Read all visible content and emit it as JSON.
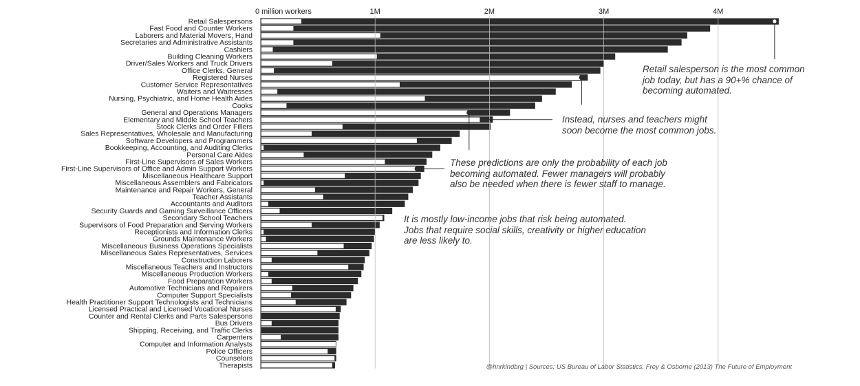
{
  "chart_data": {
    "type": "bar",
    "x_axis": {
      "ticks": [
        {
          "value": 0,
          "label": "0 million workers"
        },
        {
          "value": 1,
          "label": "1M"
        },
        {
          "value": 2,
          "label": "2M"
        },
        {
          "value": 3,
          "label": "3M"
        },
        {
          "value": 4,
          "label": "4M"
        }
      ],
      "range": [
        0,
        4.6
      ],
      "grid": true
    },
    "series": [
      {
        "key": "total",
        "description": "total employment (dark bar)",
        "color": "#2b2b2b"
      },
      {
        "key": "safe",
        "description": "portion not at risk of automation (white bar)",
        "color": "#ffffff"
      }
    ],
    "rows": [
      {
        "name": "Retail Salespersons",
        "total": 4.53,
        "safe": 0.36
      },
      {
        "name": "Fast Food and Counter Workers",
        "total": 3.93,
        "safe": 0.29
      },
      {
        "name": "Laborers and Material Movers, Hand",
        "total": 3.73,
        "safe": 1.05
      },
      {
        "name": "Secretaries and Administrative Assistants",
        "total": 3.68,
        "safe": 0.29
      },
      {
        "name": "Cashiers",
        "total": 3.56,
        "safe": 0.11
      },
      {
        "name": "Building Cleaning Workers",
        "total": 3.1,
        "safe": 1.02
      },
      {
        "name": "Driver/Sales Workers and Truck Drivers",
        "total": 3.0,
        "safe": 0.63
      },
      {
        "name": "Office Clerks, General",
        "total": 2.97,
        "safe": 0.12
      },
      {
        "name": "Registered Nurses",
        "total": 2.86,
        "safe": 2.8
      },
      {
        "name": "Customer Service Representatives",
        "total": 2.72,
        "safe": 1.22
      },
      {
        "name": "Waiters and Waitresses",
        "total": 2.58,
        "safe": 0.15
      },
      {
        "name": "Nursing, Psychiatric, and Home Health Aides",
        "total": 2.46,
        "safe": 1.44
      },
      {
        "name": "Cooks",
        "total": 2.4,
        "safe": 0.23
      },
      {
        "name": "General and Operations Managers",
        "total": 2.18,
        "safe": 1.84
      },
      {
        "name": "Elementary and Middle School Teachers",
        "total": 2.03,
        "safe": 1.92
      },
      {
        "name": "Stock Clerks and Order Fillers",
        "total": 2.01,
        "safe": 0.72
      },
      {
        "name": "Sales Representatives, Wholesale and Manufacturing",
        "total": 1.74,
        "safe": 0.45
      },
      {
        "name": "Software Developers and Programmers",
        "total": 1.67,
        "safe": 1.37
      },
      {
        "name": "Bookkeeping, Accounting, and Auditing Clerks",
        "total": 1.57,
        "safe": 0.03
      },
      {
        "name": "Personal Care Aides",
        "total": 1.5,
        "safe": 0.38
      },
      {
        "name": "First-Line Supervisors of Sales Workers",
        "total": 1.45,
        "safe": 1.09
      },
      {
        "name": "First-Line Supervisors of Office and Admin Support Workers",
        "total": 1.43,
        "safe": 1.38
      },
      {
        "name": "Miscellaneous Healthcare Support",
        "total": 1.4,
        "safe": 0.74
      },
      {
        "name": "Miscellaneous Assemblers and Fabricators",
        "total": 1.38,
        "safe": 0.03
      },
      {
        "name": "Maintenance and Repair Workers, General",
        "total": 1.33,
        "safe": 0.48
      },
      {
        "name": "Teacher Assistants",
        "total": 1.29,
        "safe": 0.55
      },
      {
        "name": "Accountants and Auditors",
        "total": 1.26,
        "safe": 0.07
      },
      {
        "name": "Security Guards and Gaming Surveillance Officers",
        "total": 1.15,
        "safe": 0.17
      },
      {
        "name": "Secondary School Teachers",
        "total": 1.08,
        "safe": 1.07
      },
      {
        "name": "Supervisors of Food Preparation and Serving Workers",
        "total": 1.04,
        "safe": 0.45
      },
      {
        "name": "Receptionists and Information Clerks",
        "total": 1.0,
        "safe": 0.03
      },
      {
        "name": "Grounds Maintenance Workers",
        "total": 0.99,
        "safe": 0.05
      },
      {
        "name": "Miscellaneous Business Operations Specialists",
        "total": 0.97,
        "safe": 0.73
      },
      {
        "name": "Miscellaneous Sales Representatives, Services",
        "total": 0.95,
        "safe": 0.5
      },
      {
        "name": "Construction Laborers",
        "total": 0.91,
        "safe": 0.1
      },
      {
        "name": "Miscellaneous Teachers and Instructors",
        "total": 0.9,
        "safe": 0.77
      },
      {
        "name": "Miscellaneous Production Workers",
        "total": 0.88,
        "safe": 0.07
      },
      {
        "name": "Food Preparation Workers",
        "total": 0.85,
        "safe": 0.1
      },
      {
        "name": "Automotive Technicians and Repairers",
        "total": 0.81,
        "safe": 0.28
      },
      {
        "name": "Computer Support Specialists",
        "total": 0.79,
        "safe": 0.27
      },
      {
        "name": "Health Practitioner Support Technologists and Technicians",
        "total": 0.75,
        "safe": 0.31
      },
      {
        "name": "Licensed Practical and Licensed Vocational Nurses",
        "total": 0.7,
        "safe": 0.66
      },
      {
        "name": "Counter and Rental Clerks and Parts Salespersons",
        "total": 0.69,
        "safe": 0.01
      },
      {
        "name": "Bus Drivers",
        "total": 0.68,
        "safe": 0.1
      },
      {
        "name": "Shipping, Receiving, and Traffic Clerks",
        "total": 0.68,
        "safe": 0.01
      },
      {
        "name": "Carpenters",
        "total": 0.68,
        "safe": 0.18
      },
      {
        "name": "Computer and Information Analysts",
        "total": 0.66,
        "safe": 0.66
      },
      {
        "name": "Police Officers",
        "total": 0.66,
        "safe": 0.59
      },
      {
        "name": "Counselors",
        "total": 0.66,
        "safe": 0.65
      },
      {
        "name": "Therapists",
        "total": 0.65,
        "safe": 0.63
      }
    ],
    "highlight_rows": [
      0,
      8,
      13,
      14,
      21
    ]
  },
  "annotations": [
    {
      "text": "Retail salesperson is the most common\njob today, but has a 90+% chance of\nbecoming automated."
    },
    {
      "text": "Instead, nurses and teachers might\nsoon become the most common jobs."
    },
    {
      "text": "These predictions are only the probability of each job\nbecoming automated. Fewer managers will probably\nalso be needed when there is fewer staff to manage."
    },
    {
      "text": "It is mostly low-income jobs that risk being automated.\nJobs that require social skills, creativity or higher education\nare less likely to."
    }
  ],
  "source": "@hnrklndbrg | Sources: US Bureau of Labor Statistics, Frey & Osborne (2013) The Future of Employment"
}
